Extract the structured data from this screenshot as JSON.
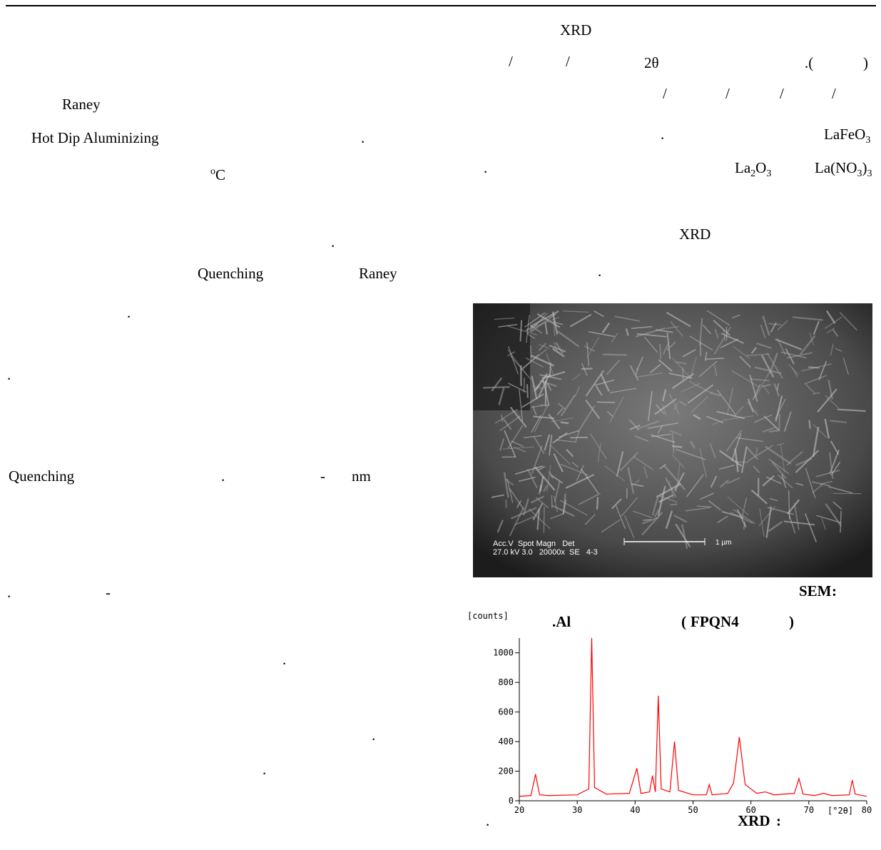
{
  "left_column": [
    "Raney",
    "Hot Dip Aluminizing",
    ".",
    ".",
    "Quenching",
    "Raney",
    ".",
    ".",
    "Quenching",
    ".",
    "-",
    "nm",
    ".",
    "-",
    ".",
    ".",
    "."
  ],
  "degree": [
    "o",
    "C"
  ],
  "right_column": [
    "XRD",
    "/",
    "/",
    "2θ",
    ".(",
    ")",
    "/",
    "/",
    "/",
    "/",
    ".",
    ".",
    "XRD",
    "."
  ],
  "formulas": [
    [
      "LaFeO",
      "3"
    ],
    [
      "La",
      "2",
      "O",
      "3"
    ],
    [
      "La(NO",
      "3",
      ")",
      "3"
    ]
  ],
  "figure_1": {
    "caption": [
      "SEM",
      ":",
      ".Al",
      "(",
      "FPQN4",
      ")"
    ],
    "overlay": [
      "Acc.V  Spot Magn   Det",
      "27.0 kV 3.0   20000x  SE   4-3",
      "1 µm"
    ]
  },
  "figure_2": {
    "caption": [
      ".",
      "XRD",
      ":"
    ],
    "chart_data": {
      "type": "line",
      "y_label": "[counts]",
      "x_label": "[°2θ]",
      "color": "#ff0000",
      "x": [
        20,
        22,
        22.8,
        23.5,
        25,
        30,
        32,
        32.5,
        33,
        35,
        39,
        40.3,
        41,
        42.5,
        43,
        43.5,
        44,
        44.5,
        46,
        46.8,
        47.5,
        50,
        52.3,
        52.8,
        53.3,
        56,
        57,
        58,
        59,
        61,
        62.5,
        64,
        67.5,
        68.3,
        69,
        71,
        72.5,
        74,
        77,
        77.5,
        78,
        80
      ],
      "values": [
        30,
        35,
        180,
        40,
        35,
        40,
        80,
        1100,
        90,
        45,
        50,
        220,
        50,
        60,
        170,
        60,
        710,
        80,
        60,
        400,
        70,
        40,
        40,
        110,
        40,
        50,
        120,
        430,
        110,
        50,
        60,
        40,
        50,
        150,
        45,
        35,
        50,
        35,
        40,
        140,
        45,
        30
      ],
      "xlim": [
        20,
        80
      ],
      "ylim": [
        0,
        1100
      ],
      "xticks": [
        20,
        30,
        40,
        50,
        60,
        70,
        80
      ],
      "yticks": [
        0,
        200,
        400,
        600,
        800,
        1000
      ]
    }
  }
}
